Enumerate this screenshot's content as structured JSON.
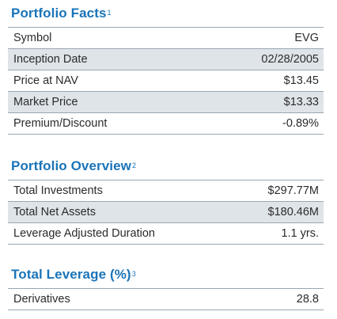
{
  "portfolio_facts": {
    "title": "Portfolio Facts",
    "note": "1",
    "rows": [
      {
        "label": "Symbol",
        "value": "EVG"
      },
      {
        "label": "Inception Date",
        "value": "02/28/2005"
      },
      {
        "label": "Price at NAV",
        "value": "$13.45"
      },
      {
        "label": "Market Price",
        "value": "$13.33"
      },
      {
        "label": "Premium/Discount",
        "value": "-0.89%"
      }
    ]
  },
  "portfolio_overview": {
    "title": "Portfolio Overview",
    "note": "2",
    "rows": [
      {
        "label": "Total Investments",
        "value": "$297.77M"
      },
      {
        "label": "Total Net Assets",
        "value": "$180.46M"
      },
      {
        "label": "Leverage Adjusted Duration",
        "value": "1.1 yrs."
      }
    ]
  },
  "total_leverage": {
    "title": "Total Leverage (%)",
    "note": "3",
    "rows": [
      {
        "label": "Derivatives",
        "value": "28.8"
      }
    ]
  },
  "colors": {
    "heading": "#1a74b8",
    "row_alt": "#dfe4e9",
    "rule": "#9aa6b1"
  }
}
